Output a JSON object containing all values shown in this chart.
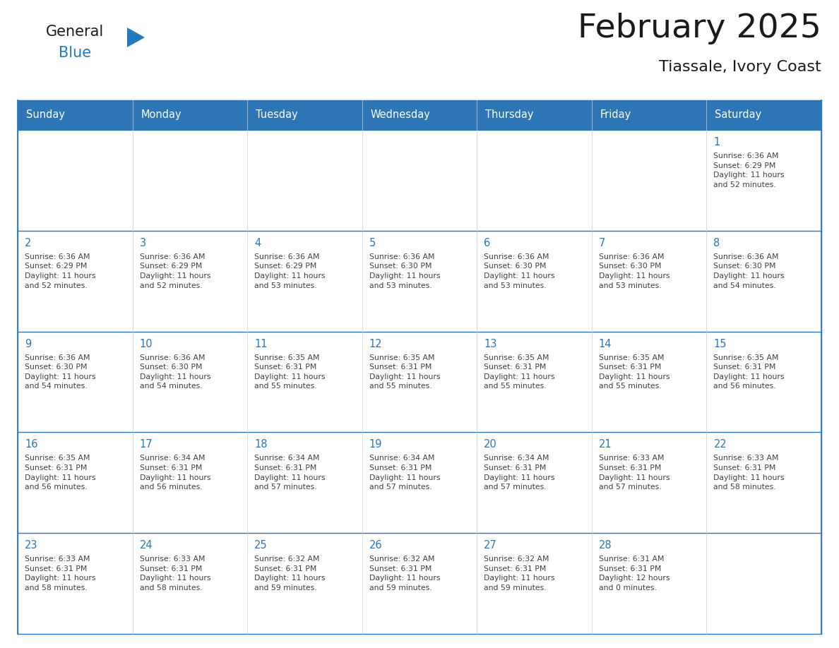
{
  "title": "February 2025",
  "subtitle": "Tiassale, Ivory Coast",
  "days_of_week": [
    "Sunday",
    "Monday",
    "Tuesday",
    "Wednesday",
    "Thursday",
    "Friday",
    "Saturday"
  ],
  "header_bg": "#2E75B6",
  "header_text": "#FFFFFF",
  "day_num_color": "#2E75B6",
  "text_color": "#404040",
  "line_color": "#2E75B6",
  "logo_general_color": "#1a1a1a",
  "logo_blue_color": "#2479BD",
  "weeks": [
    [
      {
        "day": null,
        "info": null
      },
      {
        "day": null,
        "info": null
      },
      {
        "day": null,
        "info": null
      },
      {
        "day": null,
        "info": null
      },
      {
        "day": null,
        "info": null
      },
      {
        "day": null,
        "info": null
      },
      {
        "day": 1,
        "info": "Sunrise: 6:36 AM\nSunset: 6:29 PM\nDaylight: 11 hours\nand 52 minutes."
      }
    ],
    [
      {
        "day": 2,
        "info": "Sunrise: 6:36 AM\nSunset: 6:29 PM\nDaylight: 11 hours\nand 52 minutes."
      },
      {
        "day": 3,
        "info": "Sunrise: 6:36 AM\nSunset: 6:29 PM\nDaylight: 11 hours\nand 52 minutes."
      },
      {
        "day": 4,
        "info": "Sunrise: 6:36 AM\nSunset: 6:29 PM\nDaylight: 11 hours\nand 53 minutes."
      },
      {
        "day": 5,
        "info": "Sunrise: 6:36 AM\nSunset: 6:30 PM\nDaylight: 11 hours\nand 53 minutes."
      },
      {
        "day": 6,
        "info": "Sunrise: 6:36 AM\nSunset: 6:30 PM\nDaylight: 11 hours\nand 53 minutes."
      },
      {
        "day": 7,
        "info": "Sunrise: 6:36 AM\nSunset: 6:30 PM\nDaylight: 11 hours\nand 53 minutes."
      },
      {
        "day": 8,
        "info": "Sunrise: 6:36 AM\nSunset: 6:30 PM\nDaylight: 11 hours\nand 54 minutes."
      }
    ],
    [
      {
        "day": 9,
        "info": "Sunrise: 6:36 AM\nSunset: 6:30 PM\nDaylight: 11 hours\nand 54 minutes."
      },
      {
        "day": 10,
        "info": "Sunrise: 6:36 AM\nSunset: 6:30 PM\nDaylight: 11 hours\nand 54 minutes."
      },
      {
        "day": 11,
        "info": "Sunrise: 6:35 AM\nSunset: 6:31 PM\nDaylight: 11 hours\nand 55 minutes."
      },
      {
        "day": 12,
        "info": "Sunrise: 6:35 AM\nSunset: 6:31 PM\nDaylight: 11 hours\nand 55 minutes."
      },
      {
        "day": 13,
        "info": "Sunrise: 6:35 AM\nSunset: 6:31 PM\nDaylight: 11 hours\nand 55 minutes."
      },
      {
        "day": 14,
        "info": "Sunrise: 6:35 AM\nSunset: 6:31 PM\nDaylight: 11 hours\nand 55 minutes."
      },
      {
        "day": 15,
        "info": "Sunrise: 6:35 AM\nSunset: 6:31 PM\nDaylight: 11 hours\nand 56 minutes."
      }
    ],
    [
      {
        "day": 16,
        "info": "Sunrise: 6:35 AM\nSunset: 6:31 PM\nDaylight: 11 hours\nand 56 minutes."
      },
      {
        "day": 17,
        "info": "Sunrise: 6:34 AM\nSunset: 6:31 PM\nDaylight: 11 hours\nand 56 minutes."
      },
      {
        "day": 18,
        "info": "Sunrise: 6:34 AM\nSunset: 6:31 PM\nDaylight: 11 hours\nand 57 minutes."
      },
      {
        "day": 19,
        "info": "Sunrise: 6:34 AM\nSunset: 6:31 PM\nDaylight: 11 hours\nand 57 minutes."
      },
      {
        "day": 20,
        "info": "Sunrise: 6:34 AM\nSunset: 6:31 PM\nDaylight: 11 hours\nand 57 minutes."
      },
      {
        "day": 21,
        "info": "Sunrise: 6:33 AM\nSunset: 6:31 PM\nDaylight: 11 hours\nand 57 minutes."
      },
      {
        "day": 22,
        "info": "Sunrise: 6:33 AM\nSunset: 6:31 PM\nDaylight: 11 hours\nand 58 minutes."
      }
    ],
    [
      {
        "day": 23,
        "info": "Sunrise: 6:33 AM\nSunset: 6:31 PM\nDaylight: 11 hours\nand 58 minutes."
      },
      {
        "day": 24,
        "info": "Sunrise: 6:33 AM\nSunset: 6:31 PM\nDaylight: 11 hours\nand 58 minutes."
      },
      {
        "day": 25,
        "info": "Sunrise: 6:32 AM\nSunset: 6:31 PM\nDaylight: 11 hours\nand 59 minutes."
      },
      {
        "day": 26,
        "info": "Sunrise: 6:32 AM\nSunset: 6:31 PM\nDaylight: 11 hours\nand 59 minutes."
      },
      {
        "day": 27,
        "info": "Sunrise: 6:32 AM\nSunset: 6:31 PM\nDaylight: 11 hours\nand 59 minutes."
      },
      {
        "day": 28,
        "info": "Sunrise: 6:31 AM\nSunset: 6:31 PM\nDaylight: 12 hours\nand 0 minutes."
      },
      {
        "day": null,
        "info": null
      }
    ]
  ],
  "fig_width": 11.88,
  "fig_height": 9.18,
  "dpi": 100
}
